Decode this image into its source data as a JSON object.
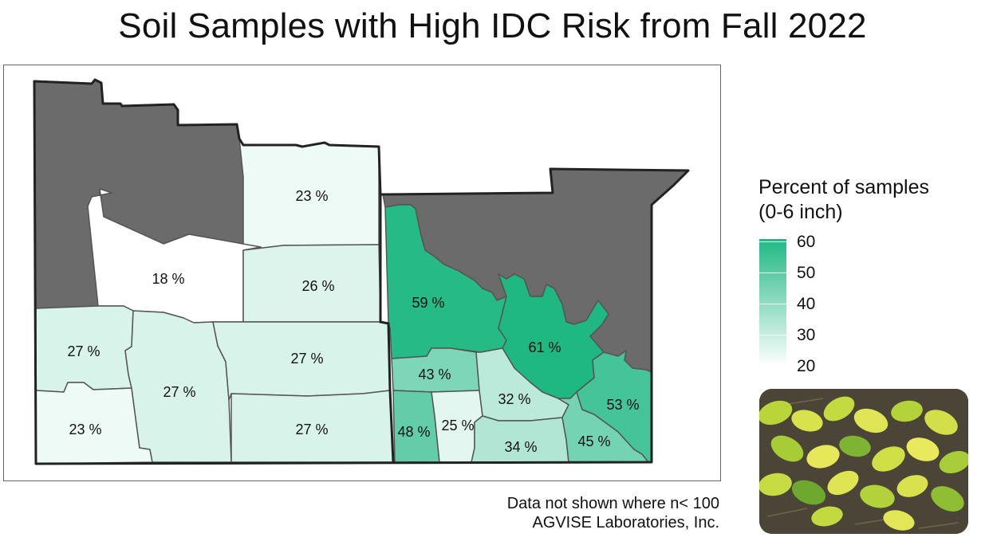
{
  "title": "Soil Samples with High IDC Risk from Fall 2022",
  "legend": {
    "title_line1": "Percent of samples",
    "title_line2": "(0-6 inch)",
    "ticks": [
      "60",
      "50",
      "40",
      "30",
      "20"
    ],
    "range": [
      20,
      60
    ],
    "low_color": "#ffffff",
    "high_color": "#1fb883"
  },
  "no_data_color": "#6b6b6b",
  "regions": [
    {
      "id": "nw-nodata",
      "value": null
    },
    {
      "id": "north-central",
      "value": 23,
      "label": "23 %"
    },
    {
      "id": "northwest-central",
      "value": 18,
      "label": "18 %"
    },
    {
      "id": "east-central",
      "value": 26,
      "label": "26 %"
    },
    {
      "id": "southwest-upper",
      "value": 27,
      "label": "27 %"
    },
    {
      "id": "southwest-lower",
      "value": 23,
      "label": "23 %"
    },
    {
      "id": "south-west-central",
      "value": 27,
      "label": "27 %"
    },
    {
      "id": "south-central-upper",
      "value": 27,
      "label": "27 %"
    },
    {
      "id": "south-central-lower",
      "value": 27,
      "label": "27 %"
    },
    {
      "id": "mn-nodata",
      "value": null
    },
    {
      "id": "mn-red-river",
      "value": 59,
      "label": "59 %"
    },
    {
      "id": "mn-central",
      "value": 61,
      "label": "61 %"
    },
    {
      "id": "mn-west-mid",
      "value": 43,
      "label": "43 %"
    },
    {
      "id": "mn-sw-strip",
      "value": 48,
      "label": "48 %"
    },
    {
      "id": "mn-south-a",
      "value": 25,
      "label": "25 %"
    },
    {
      "id": "mn-mid",
      "value": 32,
      "label": "32 %"
    },
    {
      "id": "mn-south-b",
      "value": 34,
      "label": "34 %"
    },
    {
      "id": "mn-southeast",
      "value": 45,
      "label": "45 %"
    },
    {
      "id": "mn-east",
      "value": 53,
      "label": "53 %"
    }
  ],
  "photo": {
    "icon": "soybean-leaves-photo"
  },
  "footnote": {
    "line1": "Data not shown where n< 100",
    "line2": "AGVISE Laboratories, Inc."
  }
}
